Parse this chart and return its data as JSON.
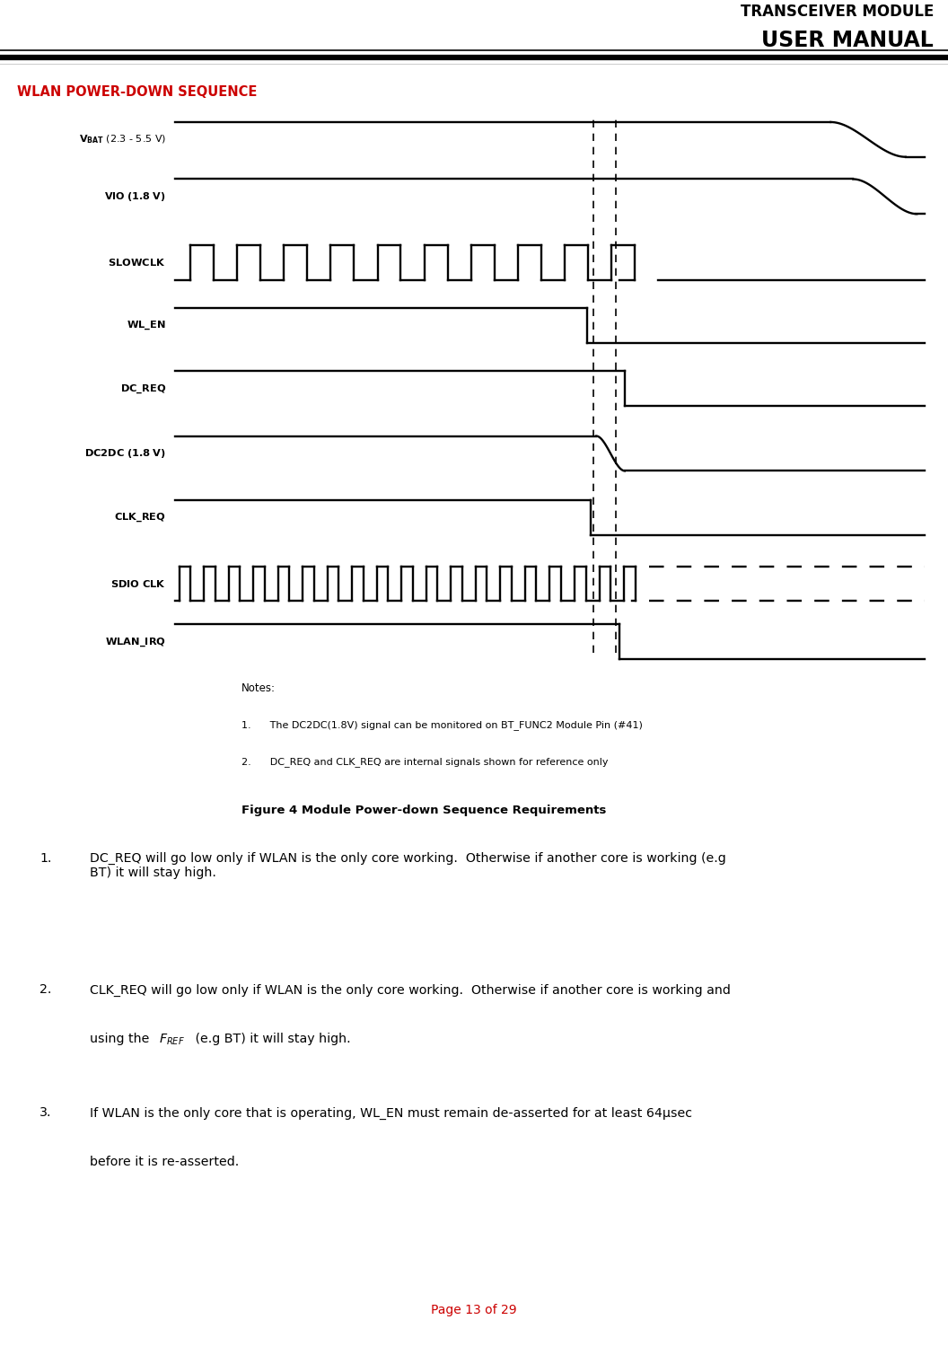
{
  "header_line1": "TRANSCEIVER MODULE",
  "header_line2": "USER MANUAL",
  "section_title": "WLAN POWER-DOWN SEQUENCE",
  "figure_caption_notes": "Notes:",
  "figure_note1": "1.      The DC2DC(1.8V) signal can be monitored on BT_FUNC2 Module Pin (#41)",
  "figure_note2": "2.      DC_REQ and CLK_REQ are internal signals shown for reference only",
  "figure_caption": "Figure 4 Module Power-down Sequence Requirements",
  "req1": "DC_REQ will go low only if WLAN is the only core working.  Otherwise if another core is working (e.g\nBT) it will stay high.",
  "req2a": "CLK_REQ will go low only if WLAN is the only core working.  Otherwise if another core is working and\nusing the ",
  "req2b": " (e.g BT) it will stay high.",
  "req3": "If WLAN is the only core that is operating, WL_EN must remain de-asserted for at least 64",
  "req3b": "sec\nbefore it is re-asserted.",
  "page_footer": "Page 13 of 29",
  "section_title_color": "#cc0000",
  "footer_color": "#cc0000",
  "dv1": 0.558,
  "dv2": 0.588
}
